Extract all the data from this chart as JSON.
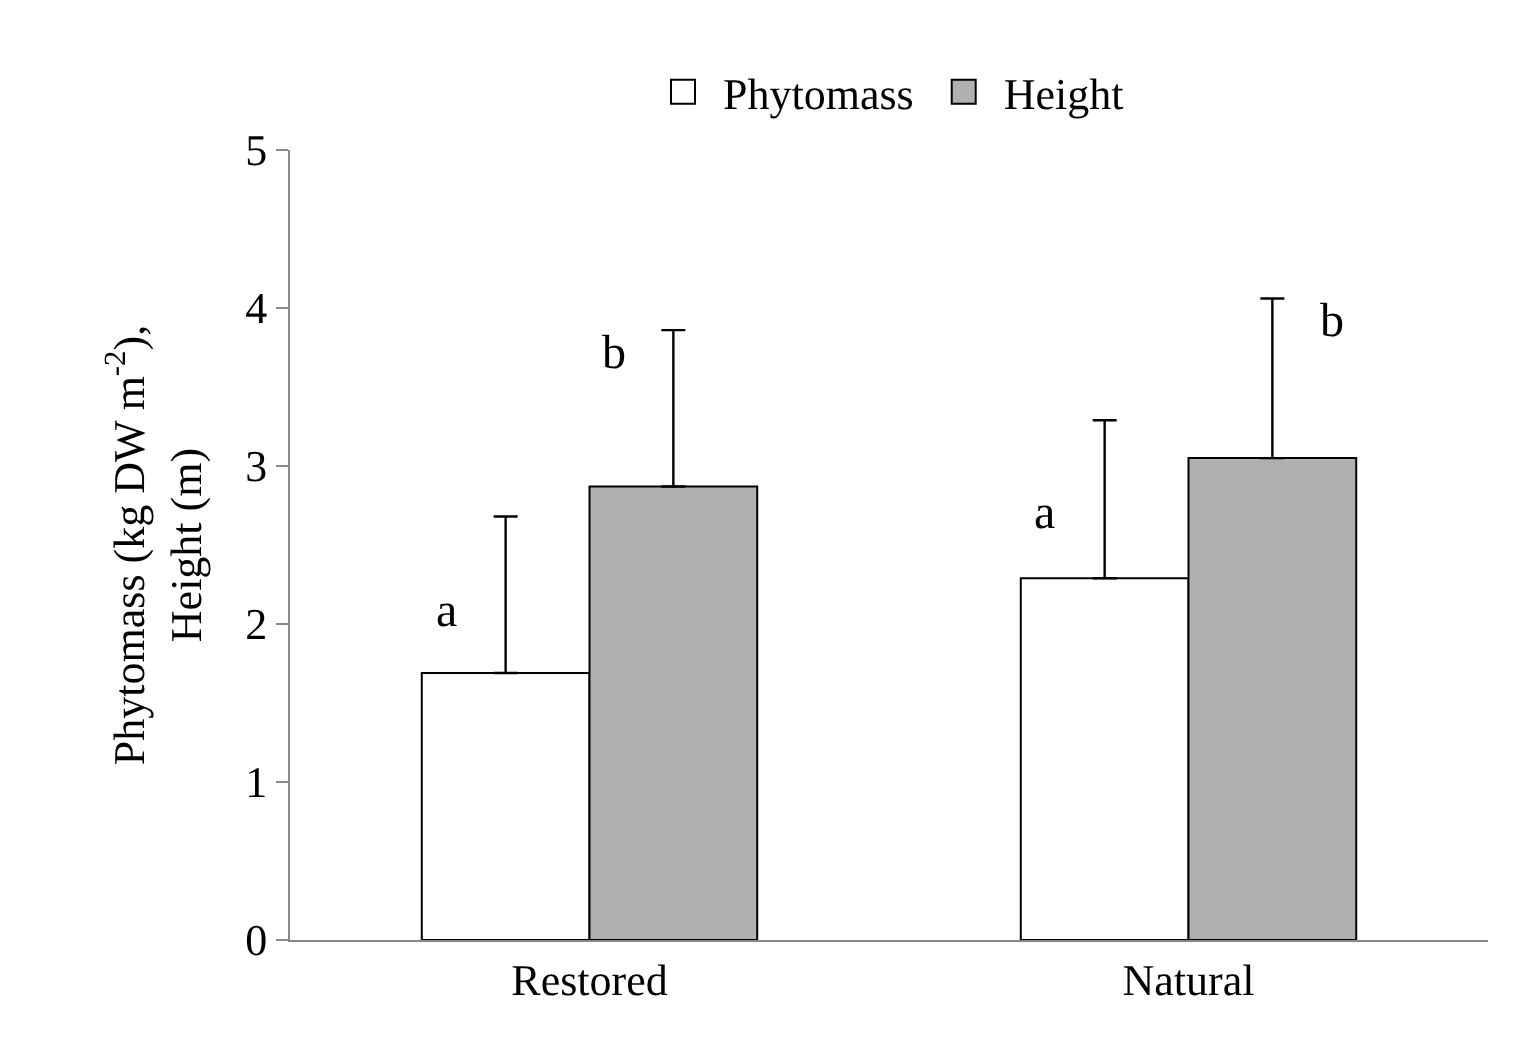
{
  "chart_data": {
    "type": "bar",
    "categories": [
      "Restored",
      "Natural"
    ],
    "series": [
      {
        "name": "Phytomass",
        "color": "#ffffff",
        "values": [
          1.69,
          2.29
        ],
        "errors": [
          [
            1.69,
            2.68
          ],
          [
            2.29,
            3.29
          ]
        ]
      },
      {
        "name": "Height",
        "color": "#b0b0b0",
        "values": [
          2.87,
          3.05
        ],
        "errors": [
          [
            2.87,
            3.86
          ],
          [
            3.05,
            4.06
          ]
        ]
      }
    ],
    "ylabel": "Phytomass (kg DW m$^{-2}$),\nHeight (m)",
    "ylim": [
      0,
      5
    ],
    "yticks": [
      0,
      1,
      2,
      3,
      4,
      5
    ],
    "legend": "top",
    "annotations": [
      "a",
      "b",
      "a",
      "b"
    ]
  }
}
